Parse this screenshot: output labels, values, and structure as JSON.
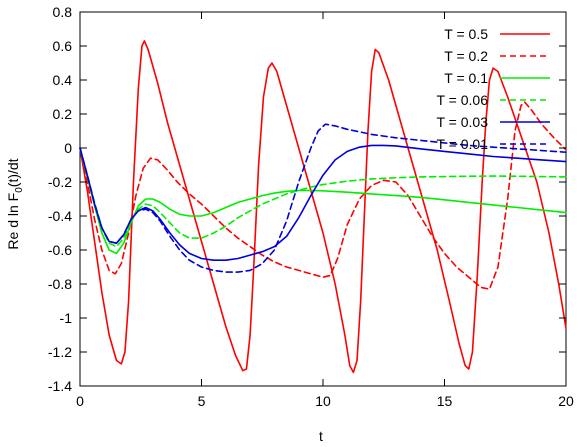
{
  "chart_data": {
    "type": "line",
    "title": "",
    "xlabel": "t",
    "ylabel": "Re d ln F",
    "ylabel_sub": "0",
    "ylabel_tail": "(t)/dt",
    "xlim": [
      0,
      20
    ],
    "ylim": [
      -1.4,
      0.8
    ],
    "xticks": [
      0,
      5,
      10,
      15,
      20
    ],
    "xtick_labels": [
      "0",
      "5",
      "10",
      "15",
      "20"
    ],
    "yticks": [
      0.8,
      0.6,
      0.4,
      0.2,
      0,
      -0.2,
      -0.4,
      -0.6,
      -0.8,
      -1,
      -1.2,
      -1.4
    ],
    "ytick_labels": [
      "0.8",
      "0.6",
      "0.4",
      "0.2",
      "0",
      "-0.2",
      "-0.4",
      "-0.6",
      "-0.8",
      "-1",
      "-1.2",
      "-1.4"
    ],
    "grid": false,
    "legend_position": "top-right",
    "series": [
      {
        "name": "T = 0.5",
        "color": "#ff0000",
        "dash": "solid",
        "points": [
          [
            0,
            0
          ],
          [
            0.3,
            -0.25
          ],
          [
            0.6,
            -0.55
          ],
          [
            0.9,
            -0.85
          ],
          [
            1.2,
            -1.1
          ],
          [
            1.5,
            -1.25
          ],
          [
            1.7,
            -1.27
          ],
          [
            1.85,
            -1.2
          ],
          [
            2.0,
            -0.9
          ],
          [
            2.2,
            -0.2
          ],
          [
            2.4,
            0.35
          ],
          [
            2.55,
            0.6
          ],
          [
            2.65,
            0.63
          ],
          [
            2.8,
            0.58
          ],
          [
            3.2,
            0.38
          ],
          [
            3.6,
            0.15
          ],
          [
            4.0,
            -0.05
          ],
          [
            4.5,
            -0.3
          ],
          [
            5.0,
            -0.55
          ],
          [
            5.5,
            -0.8
          ],
          [
            6.0,
            -1.05
          ],
          [
            6.4,
            -1.22
          ],
          [
            6.7,
            -1.31
          ],
          [
            6.85,
            -1.3
          ],
          [
            7.0,
            -1.1
          ],
          [
            7.15,
            -0.7
          ],
          [
            7.35,
            -0.1
          ],
          [
            7.55,
            0.3
          ],
          [
            7.75,
            0.47
          ],
          [
            7.9,
            0.5
          ],
          [
            8.1,
            0.45
          ],
          [
            8.5,
            0.25
          ],
          [
            9.0,
            0.0
          ],
          [
            9.5,
            -0.25
          ],
          [
            10.0,
            -0.5
          ],
          [
            10.5,
            -0.8
          ],
          [
            10.9,
            -1.1
          ],
          [
            11.1,
            -1.28
          ],
          [
            11.25,
            -1.32
          ],
          [
            11.4,
            -1.25
          ],
          [
            11.55,
            -0.9
          ],
          [
            11.7,
            -0.4
          ],
          [
            11.85,
            0.1
          ],
          [
            12.0,
            0.45
          ],
          [
            12.15,
            0.58
          ],
          [
            12.3,
            0.56
          ],
          [
            12.7,
            0.4
          ],
          [
            13.2,
            0.15
          ],
          [
            13.7,
            -0.1
          ],
          [
            14.2,
            -0.35
          ],
          [
            14.7,
            -0.6
          ],
          [
            15.2,
            -0.9
          ],
          [
            15.6,
            -1.15
          ],
          [
            15.85,
            -1.28
          ],
          [
            16.0,
            -1.3
          ],
          [
            16.15,
            -1.2
          ],
          [
            16.35,
            -0.75
          ],
          [
            16.55,
            -0.2
          ],
          [
            16.7,
            0.15
          ],
          [
            16.85,
            0.4
          ],
          [
            17.0,
            0.47
          ],
          [
            17.2,
            0.45
          ],
          [
            17.6,
            0.3
          ],
          [
            18.2,
            0.05
          ],
          [
            18.8,
            -0.2
          ],
          [
            19.3,
            -0.5
          ],
          [
            19.7,
            -0.8
          ],
          [
            20.0,
            -1.06
          ]
        ]
      },
      {
        "name": "T = 0.2",
        "color": "#ff0000",
        "dash": "dashed",
        "points": [
          [
            0,
            0
          ],
          [
            0.3,
            -0.2
          ],
          [
            0.6,
            -0.42
          ],
          [
            0.9,
            -0.6
          ],
          [
            1.2,
            -0.72
          ],
          [
            1.45,
            -0.74
          ],
          [
            1.7,
            -0.68
          ],
          [
            2.0,
            -0.5
          ],
          [
            2.3,
            -0.28
          ],
          [
            2.6,
            -0.12
          ],
          [
            2.9,
            -0.06
          ],
          [
            3.2,
            -0.07
          ],
          [
            3.6,
            -0.13
          ],
          [
            4.0,
            -0.2
          ],
          [
            4.5,
            -0.27
          ],
          [
            5.0,
            -0.33
          ],
          [
            5.5,
            -0.4
          ],
          [
            6.0,
            -0.47
          ],
          [
            6.5,
            -0.53
          ],
          [
            7.0,
            -0.58
          ],
          [
            7.5,
            -0.63
          ],
          [
            8.0,
            -0.67
          ],
          [
            8.5,
            -0.7
          ],
          [
            9.0,
            -0.72
          ],
          [
            9.5,
            -0.74
          ],
          [
            10.0,
            -0.76
          ],
          [
            10.3,
            -0.75
          ],
          [
            10.6,
            -0.65
          ],
          [
            11.0,
            -0.45
          ],
          [
            11.5,
            -0.3
          ],
          [
            12.0,
            -0.22
          ],
          [
            12.5,
            -0.19
          ],
          [
            13.0,
            -0.2
          ],
          [
            13.5,
            -0.28
          ],
          [
            14.0,
            -0.4
          ],
          [
            14.5,
            -0.52
          ],
          [
            15.0,
            -0.62
          ],
          [
            15.5,
            -0.7
          ],
          [
            16.0,
            -0.76
          ],
          [
            16.5,
            -0.82
          ],
          [
            16.85,
            -0.83
          ],
          [
            17.2,
            -0.7
          ],
          [
            17.6,
            -0.3
          ],
          [
            17.9,
            0.1
          ],
          [
            18.15,
            0.25
          ],
          [
            18.3,
            0.27
          ],
          [
            18.6,
            0.22
          ],
          [
            19.0,
            0.14
          ],
          [
            19.5,
            0.06
          ],
          [
            20.0,
            -0.01
          ]
        ]
      },
      {
        "name": "T = 0.1",
        "color": "#00ee00",
        "dash": "solid",
        "points": [
          [
            0,
            0
          ],
          [
            0.3,
            -0.17
          ],
          [
            0.6,
            -0.34
          ],
          [
            0.9,
            -0.5
          ],
          [
            1.2,
            -0.6
          ],
          [
            1.5,
            -0.62
          ],
          [
            1.8,
            -0.56
          ],
          [
            2.1,
            -0.44
          ],
          [
            2.4,
            -0.34
          ],
          [
            2.7,
            -0.3
          ],
          [
            3.0,
            -0.3
          ],
          [
            3.3,
            -0.32
          ],
          [
            3.7,
            -0.36
          ],
          [
            4.1,
            -0.39
          ],
          [
            4.5,
            -0.4
          ],
          [
            5.0,
            -0.4
          ],
          [
            5.5,
            -0.38
          ],
          [
            6.0,
            -0.35
          ],
          [
            6.5,
            -0.32
          ],
          [
            7.0,
            -0.3
          ],
          [
            7.5,
            -0.28
          ],
          [
            8.0,
            -0.265
          ],
          [
            8.5,
            -0.255
          ],
          [
            9.0,
            -0.25
          ],
          [
            9.5,
            -0.25
          ],
          [
            10.0,
            -0.252
          ],
          [
            11.0,
            -0.26
          ],
          [
            12.0,
            -0.27
          ],
          [
            13.0,
            -0.28
          ],
          [
            14.0,
            -0.29
          ],
          [
            15.0,
            -0.305
          ],
          [
            16.0,
            -0.32
          ],
          [
            17.0,
            -0.335
          ],
          [
            18.0,
            -0.35
          ],
          [
            19.0,
            -0.365
          ],
          [
            20.0,
            -0.38
          ]
        ]
      },
      {
        "name": "T = 0.06",
        "color": "#00ee00",
        "dash": "dashed",
        "points": [
          [
            0,
            0
          ],
          [
            0.3,
            -0.16
          ],
          [
            0.6,
            -0.32
          ],
          [
            0.9,
            -0.47
          ],
          [
            1.2,
            -0.56
          ],
          [
            1.5,
            -0.58
          ],
          [
            1.8,
            -0.53
          ],
          [
            2.1,
            -0.43
          ],
          [
            2.4,
            -0.36
          ],
          [
            2.7,
            -0.33
          ],
          [
            3.0,
            -0.34
          ],
          [
            3.3,
            -0.38
          ],
          [
            3.7,
            -0.44
          ],
          [
            4.1,
            -0.5
          ],
          [
            4.5,
            -0.53
          ],
          [
            5.0,
            -0.53
          ],
          [
            5.5,
            -0.5
          ],
          [
            6.0,
            -0.46
          ],
          [
            6.5,
            -0.41
          ],
          [
            7.0,
            -0.37
          ],
          [
            7.5,
            -0.33
          ],
          [
            8.0,
            -0.3
          ],
          [
            8.5,
            -0.27
          ],
          [
            9.0,
            -0.25
          ],
          [
            9.5,
            -0.23
          ],
          [
            10.0,
            -0.215
          ],
          [
            11.0,
            -0.195
          ],
          [
            12.0,
            -0.182
          ],
          [
            13.0,
            -0.175
          ],
          [
            14.0,
            -0.17
          ],
          [
            15.0,
            -0.168
          ],
          [
            16.0,
            -0.166
          ],
          [
            17.0,
            -0.165
          ],
          [
            18.0,
            -0.166
          ],
          [
            19.0,
            -0.168
          ],
          [
            20.0,
            -0.17
          ]
        ]
      },
      {
        "name": "T = 0.03",
        "color": "#0000dd",
        "dash": "solid",
        "points": [
          [
            0,
            0
          ],
          [
            0.3,
            -0.16
          ],
          [
            0.6,
            -0.33
          ],
          [
            0.9,
            -0.47
          ],
          [
            1.2,
            -0.55
          ],
          [
            1.5,
            -0.56
          ],
          [
            1.8,
            -0.51
          ],
          [
            2.1,
            -0.42
          ],
          [
            2.4,
            -0.37
          ],
          [
            2.7,
            -0.35
          ],
          [
            3.0,
            -0.37
          ],
          [
            3.3,
            -0.42
          ],
          [
            3.7,
            -0.5
          ],
          [
            4.1,
            -0.57
          ],
          [
            4.5,
            -0.62
          ],
          [
            5.0,
            -0.65
          ],
          [
            5.5,
            -0.66
          ],
          [
            6.0,
            -0.66
          ],
          [
            6.5,
            -0.65
          ],
          [
            7.0,
            -0.63
          ],
          [
            7.5,
            -0.61
          ],
          [
            8.0,
            -0.58
          ],
          [
            8.5,
            -0.52
          ],
          [
            9.0,
            -0.41
          ],
          [
            9.5,
            -0.28
          ],
          [
            10.0,
            -0.16
          ],
          [
            10.5,
            -0.07
          ],
          [
            11.0,
            -0.02
          ],
          [
            11.5,
            0.005
          ],
          [
            12.0,
            0.015
          ],
          [
            12.5,
            0.015
          ],
          [
            13.0,
            0.012
          ],
          [
            14.0,
            -0.005
          ],
          [
            15.0,
            -0.02
          ],
          [
            16.0,
            -0.035
          ],
          [
            17.0,
            -0.05
          ],
          [
            18.0,
            -0.06
          ],
          [
            19.0,
            -0.07
          ],
          [
            20.0,
            -0.08
          ]
        ]
      },
      {
        "name": "T = 0.01",
        "color": "#0000dd",
        "dash": "dashed",
        "points": [
          [
            0,
            0
          ],
          [
            0.3,
            -0.16
          ],
          [
            0.6,
            -0.33
          ],
          [
            0.9,
            -0.47
          ],
          [
            1.2,
            -0.55
          ],
          [
            1.5,
            -0.56
          ],
          [
            1.8,
            -0.51
          ],
          [
            2.1,
            -0.42
          ],
          [
            2.4,
            -0.37
          ],
          [
            2.7,
            -0.36
          ],
          [
            3.0,
            -0.38
          ],
          [
            3.3,
            -0.43
          ],
          [
            3.7,
            -0.52
          ],
          [
            4.1,
            -0.6
          ],
          [
            4.5,
            -0.66
          ],
          [
            5.0,
            -0.7
          ],
          [
            5.5,
            -0.72
          ],
          [
            6.0,
            -0.73
          ],
          [
            6.5,
            -0.73
          ],
          [
            7.0,
            -0.72
          ],
          [
            7.5,
            -0.68
          ],
          [
            8.0,
            -0.6
          ],
          [
            8.5,
            -0.43
          ],
          [
            9.0,
            -0.2
          ],
          [
            9.5,
            0.0
          ],
          [
            9.8,
            0.1
          ],
          [
            10.1,
            0.14
          ],
          [
            10.5,
            0.13
          ],
          [
            11.0,
            0.11
          ],
          [
            12.0,
            0.08
          ],
          [
            13.0,
            0.06
          ],
          [
            14.0,
            0.045
          ],
          [
            15.0,
            0.03
          ],
          [
            16.0,
            0.015
          ],
          [
            17.0,
            0.005
          ],
          [
            18.0,
            -0.005
          ],
          [
            19.0,
            -0.015
          ],
          [
            20.0,
            -0.025
          ]
        ]
      }
    ]
  }
}
